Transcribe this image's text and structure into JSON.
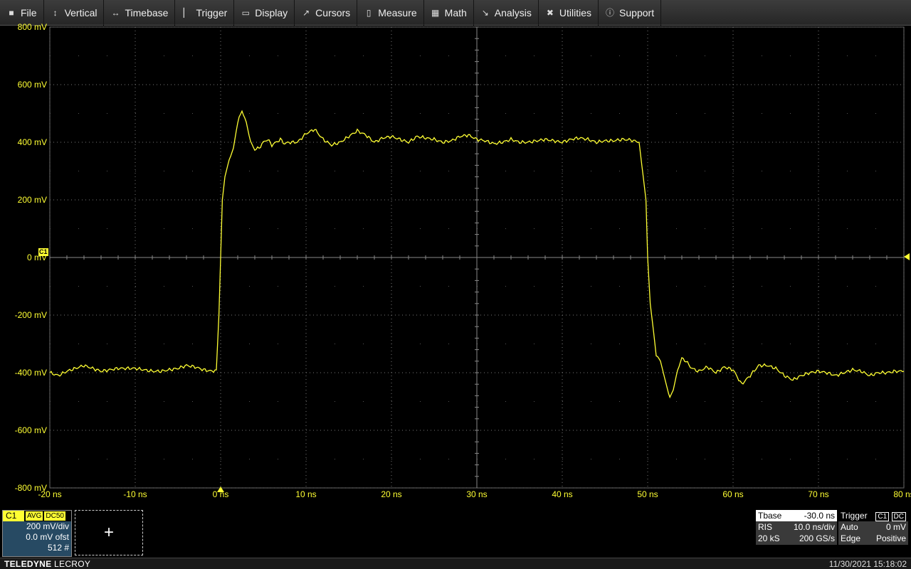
{
  "menu": [
    {
      "label": "File",
      "icon": "file-icon"
    },
    {
      "label": "Vertical",
      "icon": "vertical-arrow-icon"
    },
    {
      "label": "Timebase",
      "icon": "horizontal-arrow-icon"
    },
    {
      "label": "Trigger",
      "icon": "trigger-icon"
    },
    {
      "label": "Display",
      "icon": "display-icon"
    },
    {
      "label": "Cursors",
      "icon": "cursor-icon"
    },
    {
      "label": "Measure",
      "icon": "measure-icon"
    },
    {
      "label": "Math",
      "icon": "calculator-icon"
    },
    {
      "label": "Analysis",
      "icon": "analysis-chart-icon"
    },
    {
      "label": "Utilities",
      "icon": "wrench-icon"
    },
    {
      "label": "Support",
      "icon": "info-icon"
    }
  ],
  "chart_data": {
    "type": "line",
    "title": "",
    "xlabel": "",
    "ylabel": "",
    "xlim": [
      -20,
      80
    ],
    "ylim": [
      -800,
      800
    ],
    "x_unit": "ns",
    "y_unit": "mV",
    "x_ticks": [
      "-20 ns",
      "-10 ns",
      "0 ns",
      "10 ns",
      "20 ns",
      "30 ns",
      "40 ns",
      "50 ns",
      "60 ns",
      "70 ns",
      "80 ns"
    ],
    "y_ticks": [
      "800 mV",
      "600 mV",
      "400 mV",
      "200 mV",
      "0 mV",
      "-200 mV",
      "-400 mV",
      "-600 mV",
      "-800 mV"
    ],
    "grid": true,
    "color": "#ffff33",
    "series": [
      {
        "name": "C1",
        "x": [
          -20,
          -19,
          -18,
          -17,
          -16,
          -15,
          -14,
          -13,
          -12,
          -11,
          -10,
          -9,
          -8,
          -7,
          -6,
          -5,
          -4,
          -3,
          -2,
          -1,
          -0.5,
          -0.2,
          0,
          0.2,
          0.5,
          1,
          1.5,
          2,
          2.5,
          3,
          3.5,
          4,
          4.5,
          5,
          5.5,
          6,
          6.5,
          7,
          7.5,
          8,
          9,
          10,
          11,
          12,
          13,
          14,
          15,
          16,
          17,
          18,
          19,
          20,
          21,
          22,
          23,
          24,
          25,
          26,
          27,
          28,
          29,
          30,
          31,
          32,
          33,
          34,
          35,
          36,
          37,
          38,
          39,
          40,
          41,
          42,
          43,
          44,
          45,
          46,
          47,
          48,
          49,
          49.8,
          50,
          50.3,
          50.7,
          51,
          51.5,
          52,
          52.6,
          53,
          53.5,
          54,
          54.5,
          55,
          55.5,
          56,
          57,
          58,
          59,
          60,
          61,
          62,
          63,
          64,
          65,
          66,
          67,
          68,
          69,
          70,
          71,
          72,
          73,
          74,
          75,
          76,
          77,
          78,
          79,
          80
        ],
        "y": [
          -400,
          -410,
          -395,
          -385,
          -375,
          -385,
          -395,
          -390,
          -385,
          -385,
          -385,
          -390,
          -395,
          -395,
          -390,
          -385,
          -375,
          -380,
          -390,
          -395,
          -390,
          -200,
          0,
          200,
          280,
          340,
          380,
          470,
          510,
          470,
          400,
          375,
          380,
          400,
          410,
          390,
          400,
          410,
          395,
          400,
          400,
          430,
          445,
          410,
          390,
          400,
          420,
          440,
          425,
          400,
          415,
          420,
          410,
          400,
          420,
          415,
          410,
          400,
          405,
          420,
          425,
          410,
          405,
          395,
          400,
          410,
          400,
          400,
          405,
          410,
          405,
          400,
          410,
          415,
          410,
          400,
          405,
          405,
          410,
          408,
          400,
          200,
          0,
          -160,
          -260,
          -340,
          -360,
          -420,
          -490,
          -460,
          -390,
          -350,
          -360,
          -380,
          -390,
          -395,
          -380,
          -400,
          -380,
          -390,
          -440,
          -410,
          -375,
          -375,
          -385,
          -410,
          -425,
          -410,
          -400,
          -395,
          -400,
          -410,
          -400,
          -390,
          -395,
          -410,
          -400,
          -400,
          -395,
          -395
        ]
      }
    ]
  },
  "grid_labels": {
    "channel_marker": "C1"
  },
  "channel": {
    "name": "C1",
    "tags": [
      "AVG",
      "DC50"
    ],
    "scale": "200 mV/div",
    "offset": "0.0 mV ofst",
    "sweeps": "512 #"
  },
  "add_trace_symbol": "+",
  "timebase": {
    "label": "Tbase",
    "value": "-30.0 ns",
    "mode": "RIS",
    "div": "10.0 ns/div",
    "samples": "20 kS",
    "rate": "200 GS/s"
  },
  "trigger": {
    "label": "Trigger",
    "source_tag": "C1",
    "coupling_tag": "DC",
    "mode": "Auto",
    "level": "0 mV",
    "type": "Edge",
    "slope": "Positive"
  },
  "status": {
    "brand_bold": "TELEDYNE",
    "brand_rest": " LECROY",
    "datetime": "11/30/2021 15:18:02"
  }
}
